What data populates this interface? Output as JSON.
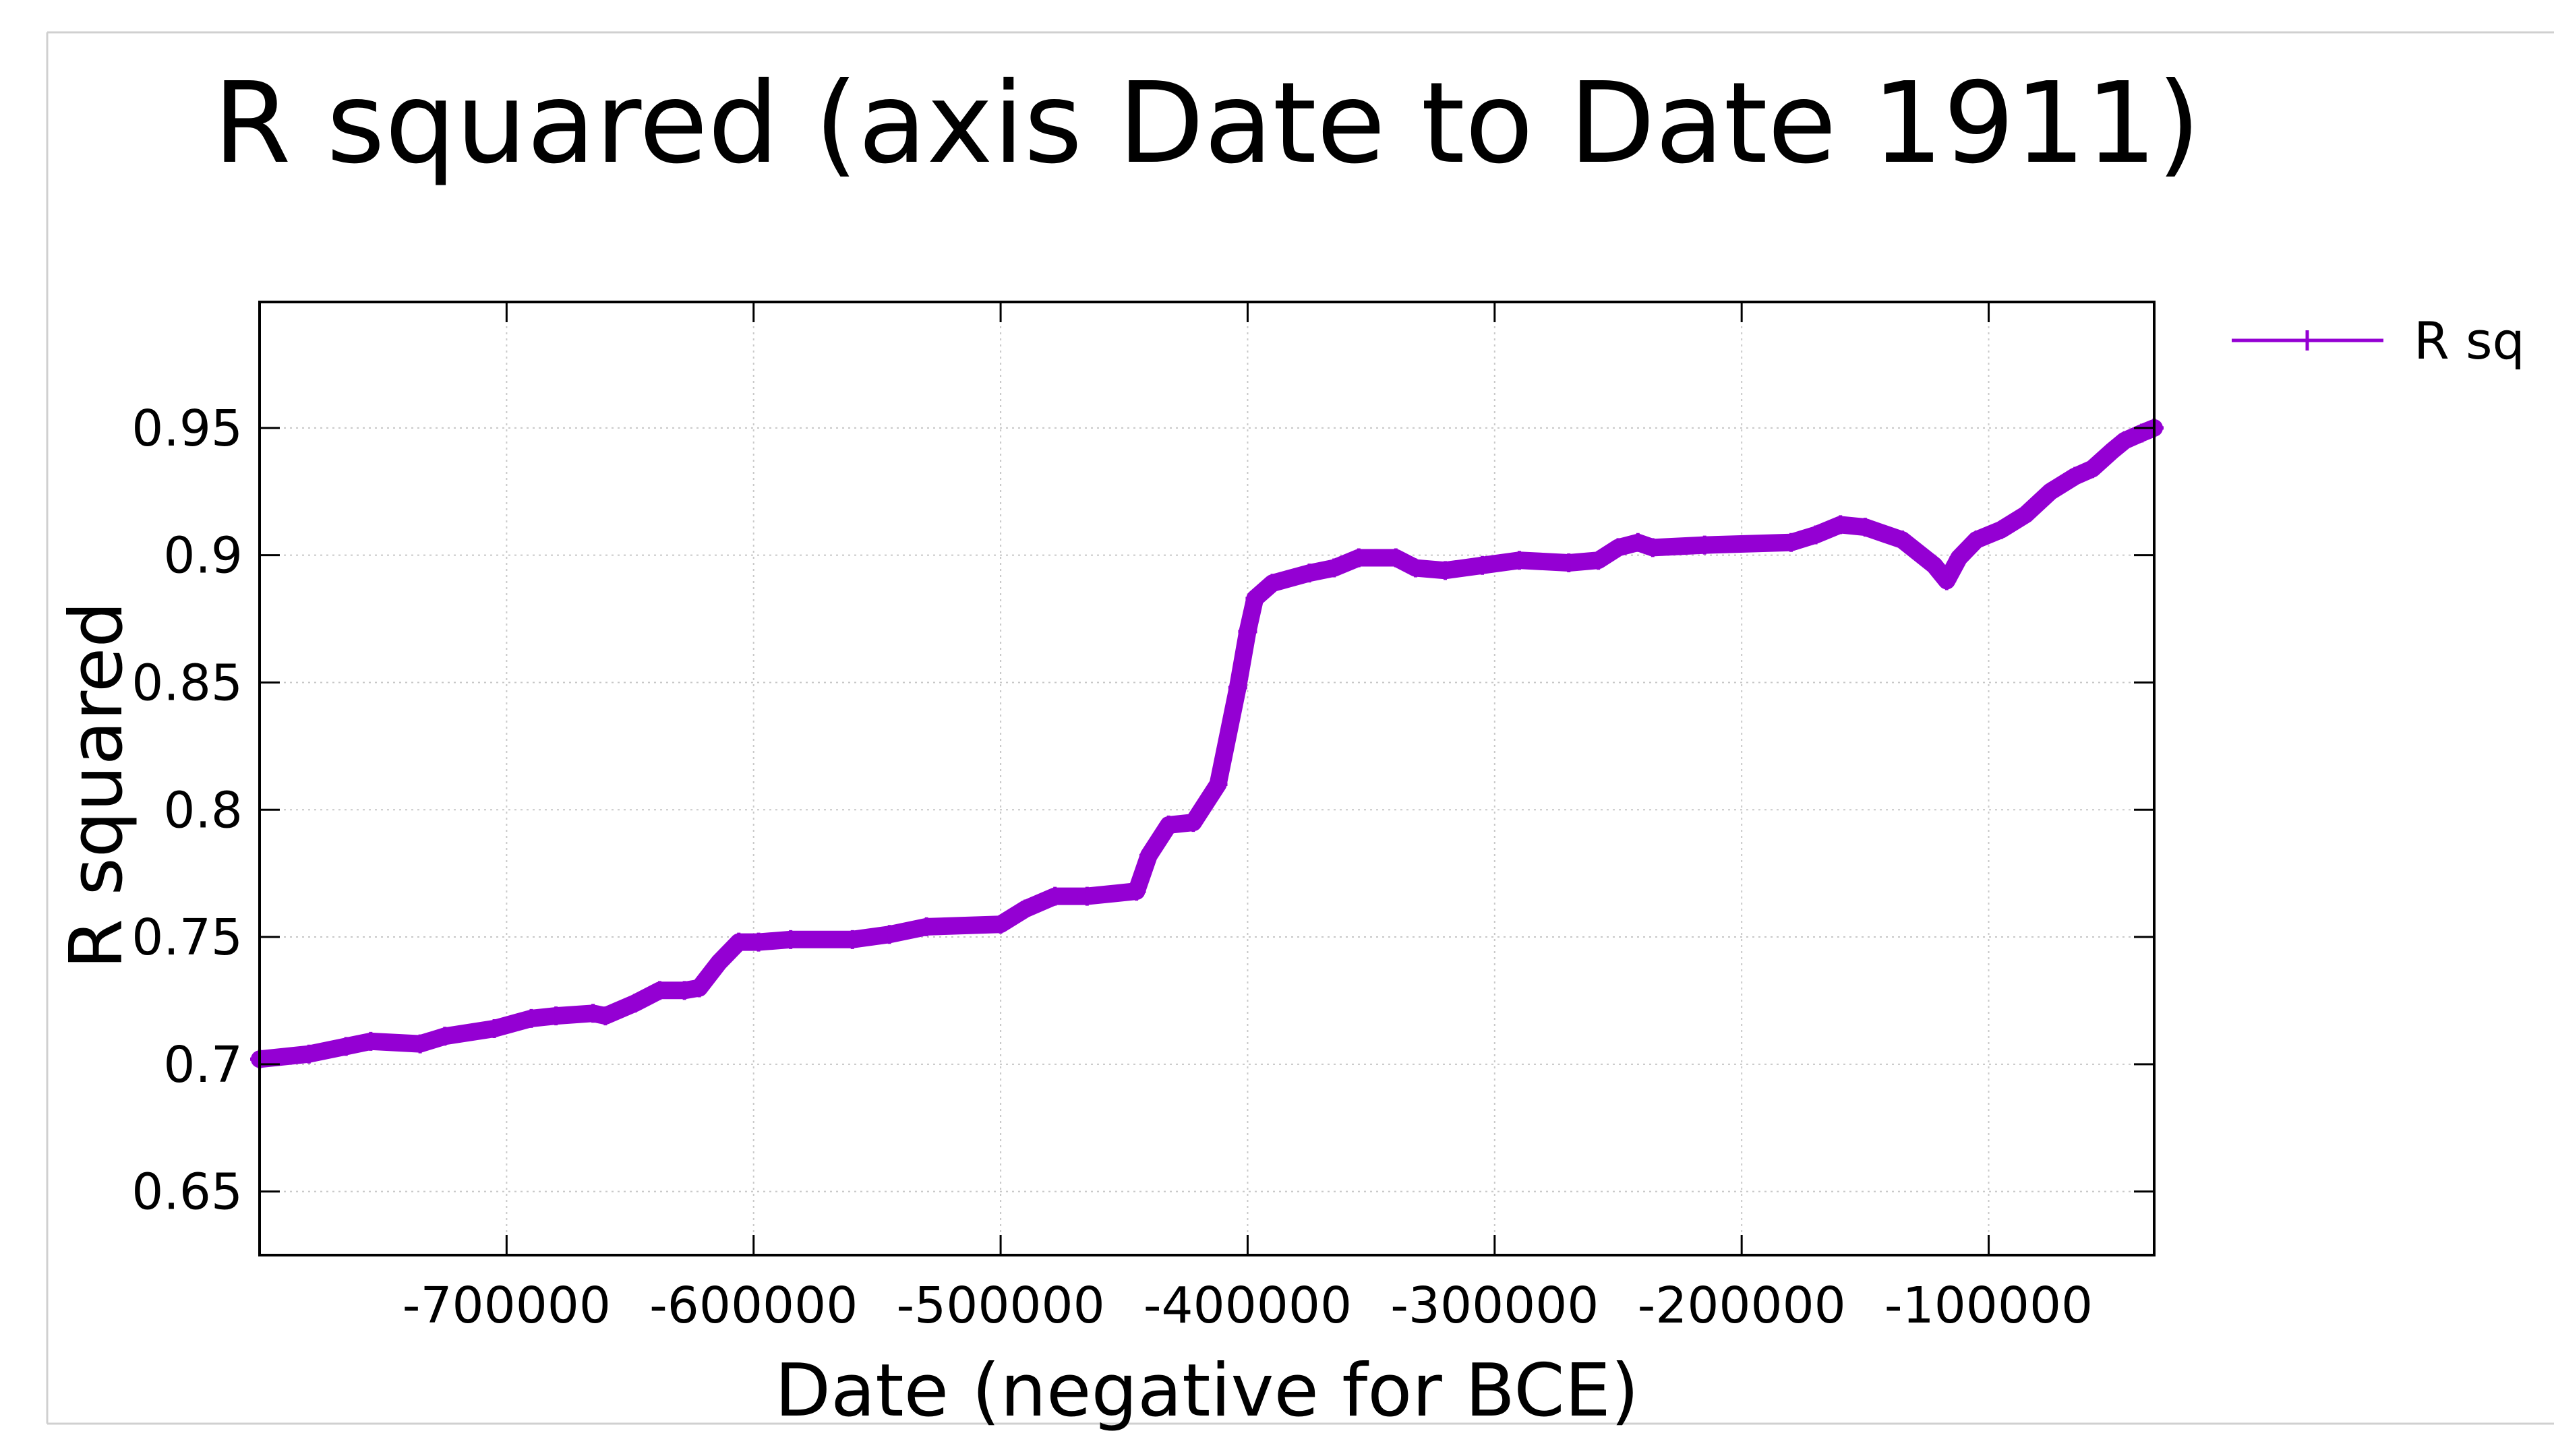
{
  "chart_data": {
    "type": "line",
    "title": "R squared (axis Date to Date 1911)",
    "xlabel": "Date (negative for BCE)",
    "ylabel": "R squared",
    "xlim": [
      -800000,
      -33000
    ],
    "ylim": [
      0.625,
      0.9995
    ],
    "x_ticks": [
      -700000,
      -600000,
      -500000,
      -400000,
      -300000,
      -200000,
      -100000
    ],
    "x_tick_labels": [
      "-700000",
      "-600000",
      "-500000",
      "-400000",
      "-300000",
      "-200000",
      "-100000"
    ],
    "y_ticks": [
      0.65,
      0.7,
      0.75,
      0.8,
      0.85,
      0.9,
      0.95
    ],
    "y_tick_labels": [
      "0.65",
      "0.7",
      "0.75",
      "0.8",
      "0.85",
      "0.9",
      "0.95"
    ],
    "grid": true,
    "legend_position": "top-right, outside plot",
    "series_color": "#9400d3",
    "series": [
      {
        "name": "R sq",
        "x": [
          -800000,
          -780000,
          -765000,
          -755000,
          -735000,
          -725000,
          -705000,
          -690000,
          -680000,
          -665000,
          -660000,
          -648000,
          -638000,
          -628000,
          -622000,
          -614000,
          -606000,
          -598000,
          -585000,
          -560000,
          -545000,
          -530000,
          -500000,
          -490000,
          -478000,
          -465000,
          -445000,
          -440000,
          -432000,
          -422000,
          -412000,
          -404000,
          -400000,
          -397000,
          -390000,
          -375000,
          -365000,
          -355000,
          -340000,
          -332000,
          -320000,
          -305000,
          -290000,
          -270000,
          -258000,
          -250000,
          -242000,
          -236000,
          -215000,
          -180000,
          -170000,
          -160000,
          -150000,
          -135000,
          -122000,
          -117000,
          -112000,
          -105000,
          -95000,
          -85000,
          -75000,
          -65000,
          -58000,
          -50000,
          -45000,
          -38000,
          -33000
        ],
        "y": [
          0.702,
          0.704,
          0.707,
          0.709,
          0.708,
          0.711,
          0.714,
          0.718,
          0.719,
          0.72,
          0.719,
          0.724,
          0.729,
          0.729,
          0.73,
          0.74,
          0.748,
          0.748,
          0.749,
          0.749,
          0.751,
          0.754,
          0.755,
          0.761,
          0.766,
          0.766,
          0.768,
          0.782,
          0.794,
          0.795,
          0.81,
          0.848,
          0.87,
          0.883,
          0.889,
          0.893,
          0.895,
          0.899,
          0.899,
          0.895,
          0.894,
          0.896,
          0.898,
          0.897,
          0.898,
          0.903,
          0.905,
          0.903,
          0.904,
          0.905,
          0.908,
          0.912,
          0.911,
          0.906,
          0.896,
          0.89,
          0.899,
          0.906,
          0.91,
          0.916,
          0.925,
          0.931,
          0.934,
          0.941,
          0.945,
          0.948,
          0.95
        ]
      }
    ]
  }
}
